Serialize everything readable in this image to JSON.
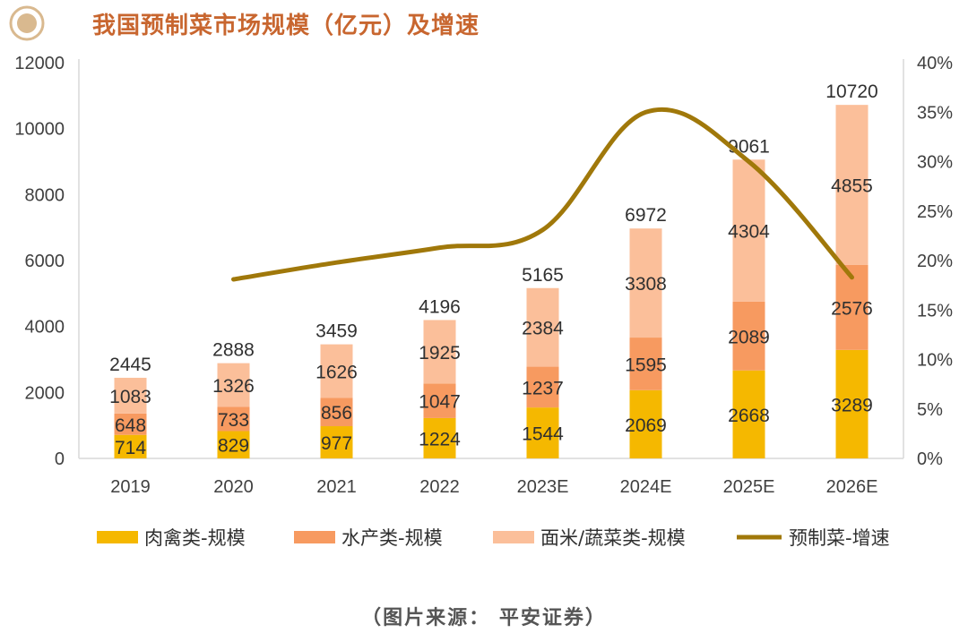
{
  "header": {
    "title": "我国预制菜市场规模（亿元）及增速"
  },
  "source": "（图片来源： 平安证券）",
  "colors": {
    "title": "#c8662f",
    "meat": "#f5b800",
    "aquatic": "#f79a60",
    "noodle_veg": "#fbbf9a",
    "growth": "#a0780a",
    "axis": "#d9d9d9"
  },
  "chart_data": {
    "type": "bar",
    "stacked": true,
    "title": "我国预制菜市场规模（亿元）及增速",
    "categories": [
      "2019",
      "2020",
      "2021",
      "2022",
      "2023E",
      "2024E",
      "2025E",
      "2026E"
    ],
    "series": [
      {
        "name": "肉禽类-规模",
        "type": "bar",
        "values": [
          714,
          829,
          977,
          1224,
          1544,
          2069,
          2668,
          3289
        ]
      },
      {
        "name": "水产类-规模",
        "type": "bar",
        "values": [
          648,
          733,
          856,
          1047,
          1237,
          1595,
          2089,
          2576
        ]
      },
      {
        "name": "面米/蔬菜类-规模",
        "type": "bar",
        "values": [
          1083,
          1326,
          1626,
          1925,
          2384,
          3308,
          4304,
          4855
        ]
      },
      {
        "name": "预制菜-增速",
        "type": "line",
        "axis": "right",
        "values": [
          null,
          18.1,
          19.8,
          21.3,
          23.1,
          35.0,
          30.0,
          18.3
        ]
      }
    ],
    "totals": [
      2445,
      2888,
      3459,
      4196,
      5165,
      6972,
      9061,
      10720
    ],
    "y_left": {
      "range": [
        0,
        12000
      ],
      "ticks": [
        "0",
        "2000",
        "4000",
        "6000",
        "8000",
        "10000",
        "12000"
      ]
    },
    "y_right": {
      "range": [
        0,
        40
      ],
      "unit": "%",
      "ticks": [
        "0%",
        "5%",
        "10%",
        "15%",
        "20%",
        "25%",
        "30%",
        "35%",
        "40%"
      ]
    },
    "legend_position": "bottom",
    "grid": false
  }
}
